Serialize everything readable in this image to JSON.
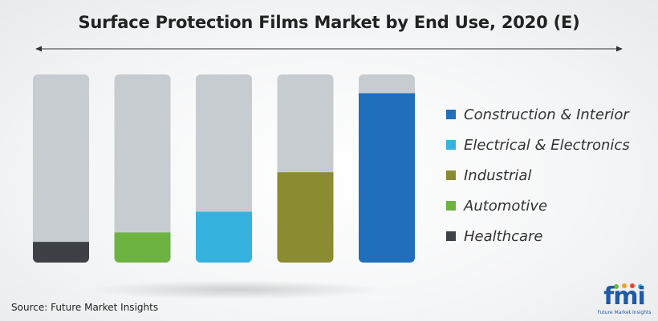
{
  "header": {
    "title": "Surface Protection Films Market by End Use, 2020 (E)"
  },
  "footer": {
    "source": "Source: Future Market Insights"
  },
  "logo": {
    "word": "fmi",
    "subtitle": "Future Market Insights",
    "color": "#1f5aa6"
  },
  "chart_data": {
    "type": "bar",
    "title": "Surface Protection Films Market by End Use, 2020 (E)",
    "categories": [
      "Healthcare",
      "Automotive",
      "Electrical & Electronics",
      "Industrial",
      "Construction & Interior"
    ],
    "values": [
      11,
      16,
      27,
      48,
      90
    ],
    "ylim": [
      0,
      100
    ],
    "track_color": "#c7ccd1",
    "colors": [
      "#3d4145",
      "#6db342",
      "#35b3de",
      "#8b8b32",
      "#1f6fbd"
    ],
    "legend": {
      "placement": "right",
      "entries": [
        {
          "label": "Construction & Interior",
          "color": "#1f6fbd"
        },
        {
          "label": "Electrical & Electronics",
          "color": "#35b3de"
        },
        {
          "label": "Industrial",
          "color": "#8b8b32"
        },
        {
          "label": "Automotive",
          "color": "#6db342"
        },
        {
          "label": "Healthcare",
          "color": "#3d4145"
        }
      ]
    }
  }
}
